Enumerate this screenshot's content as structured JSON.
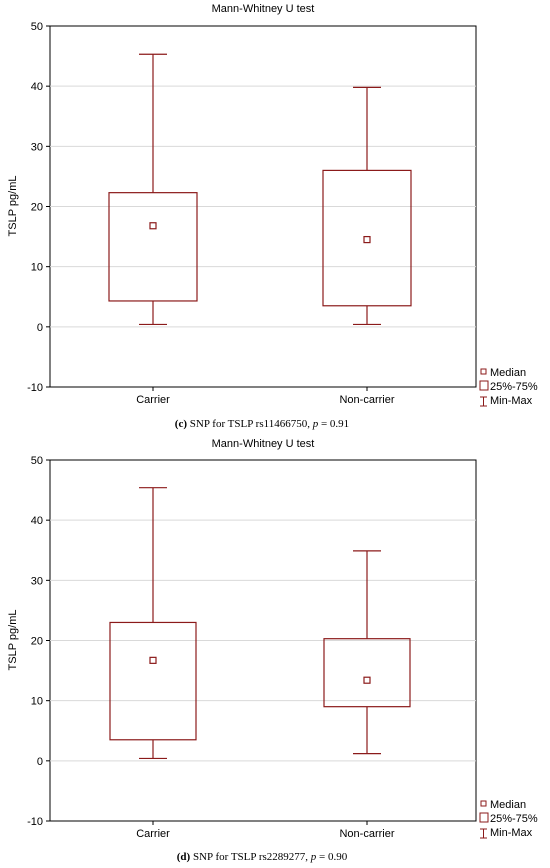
{
  "colors": {
    "box": "#8b1a1a",
    "grid": "#d9d9d9",
    "frame": "#000000"
  },
  "legend": {
    "median": "Median",
    "iqr": "25%-75%",
    "range": "Min-Max"
  },
  "chart_data": [
    {
      "type": "box",
      "title": "Mann-Whitney U test",
      "ylabel": "TSLP pg/mL",
      "xlabel": "",
      "ylim": [
        -10,
        50
      ],
      "yticks": [
        "50",
        "40",
        "30",
        "20",
        "10",
        "0",
        "-10"
      ],
      "ytick_values": [
        50,
        40,
        30,
        20,
        10,
        0,
        -10
      ],
      "grid": true,
      "legend_position": "bottom-right",
      "categories": [
        "Carrier",
        "Non-carrier"
      ],
      "stats": [
        {
          "min": 0.4,
          "q1": 4.3,
          "median": 16.8,
          "q3": 22.3,
          "max": 45.3
        },
        {
          "min": 0.4,
          "q1": 3.5,
          "median": 14.5,
          "q3": 26.0,
          "max": 39.8
        }
      ],
      "caption": {
        "label": "(c)",
        "text": " SNP for TSLP rs11466750, ",
        "p_var": "p",
        "p_value": " = 0.91"
      }
    },
    {
      "type": "box",
      "title": "Mann-Whitney U test",
      "ylabel": "TSLP pg/mL",
      "xlabel": "",
      "ylim": [
        -10,
        50
      ],
      "yticks": [
        "50",
        "40",
        "30",
        "20",
        "10",
        "0",
        "-10"
      ],
      "ytick_values": [
        50,
        40,
        30,
        20,
        10,
        0,
        -10
      ],
      "grid": true,
      "legend_position": "bottom-right",
      "categories": [
        "Carrier",
        "Non-carrier"
      ],
      "stats": [
        {
          "min": 0.4,
          "q1": 3.5,
          "median": 16.7,
          "q3": 23.0,
          "max": 45.4
        },
        {
          "min": 1.2,
          "q1": 9.0,
          "median": 13.4,
          "q3": 20.3,
          "max": 34.9
        }
      ],
      "caption": {
        "label": "(d)",
        "text": " SNP for TSLP rs2289277, ",
        "p_var": "p",
        "p_value": " = 0.90"
      }
    }
  ]
}
